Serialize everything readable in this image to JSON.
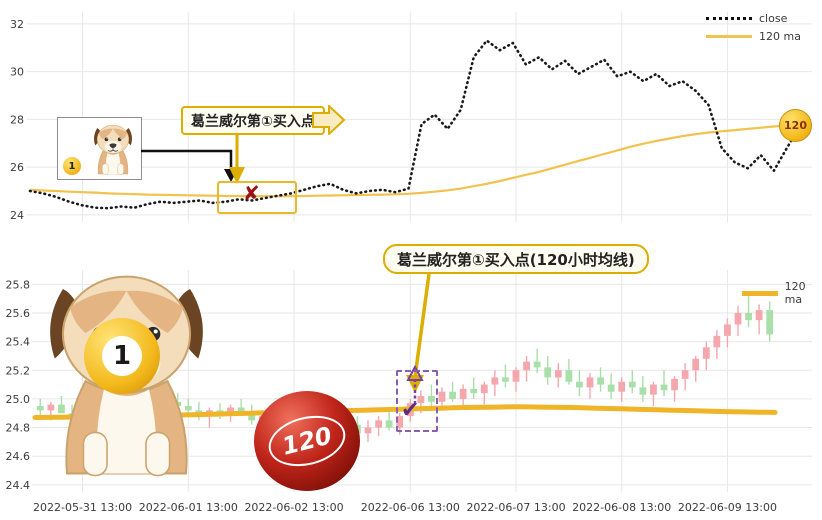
{
  "colors": {
    "up_candle": "#f4a7ad",
    "down_candle": "#a9dfa9",
    "ma_line": "#f0b429",
    "ma_line_top": "#f2c14e",
    "close_line": "#1a1a1a",
    "grid": "#e7e7e7",
    "tick_text": "#3c3c3c",
    "annotation_gold": "#dcae00",
    "marker_red": "#9c1313",
    "marker_purple": "#7b3fa0"
  },
  "annotations": {
    "top_label": "葛兰威尔第①买入点",
    "bottom_label": "葛兰威尔第①买入点(120小时均线)",
    "top_marker": "✘",
    "bottom_marker": "✔",
    "ma_badge": "120"
  },
  "balls": {
    "yellow_label": "1",
    "red_label": "120",
    "small_label": "1"
  },
  "chart_data": [
    {
      "type": "line",
      "title": "",
      "xlabel": "",
      "ylabel": "",
      "ylim": [
        23.7,
        32.5
      ],
      "y_ticks": [
        24,
        26,
        28,
        30,
        32
      ],
      "grid": true,
      "legend_position": "top-right",
      "series": [
        {
          "name": "close",
          "style": "dotted-black",
          "values": [
            25.0,
            24.9,
            24.75,
            24.55,
            24.4,
            24.3,
            24.28,
            24.35,
            24.3,
            24.45,
            24.55,
            24.5,
            24.55,
            24.6,
            24.5,
            24.55,
            24.65,
            24.6,
            24.7,
            24.8,
            24.9,
            25.05,
            25.2,
            25.3,
            25.05,
            24.9,
            25.0,
            25.05,
            24.95,
            25.1,
            27.8,
            28.2,
            27.6,
            28.4,
            30.6,
            31.3,
            30.9,
            31.2,
            30.3,
            30.6,
            30.1,
            30.45,
            29.9,
            30.2,
            30.5,
            29.8,
            30.0,
            29.6,
            29.9,
            29.4,
            29.6,
            29.2,
            28.6,
            26.8,
            26.2,
            25.95,
            26.5,
            25.85,
            26.8,
            27.7
          ]
        },
        {
          "name": "120 ma",
          "style": "solid-gold",
          "values": [
            25.05,
            25.02,
            25.0,
            24.97,
            24.95,
            24.93,
            24.9,
            24.88,
            24.87,
            24.85,
            24.84,
            24.83,
            24.82,
            24.81,
            24.8,
            24.79,
            24.79,
            24.78,
            24.78,
            24.78,
            24.78,
            24.79,
            24.8,
            24.81,
            24.82,
            24.83,
            24.84,
            24.85,
            24.86,
            24.88,
            24.92,
            24.97,
            25.03,
            25.1,
            25.2,
            25.3,
            25.42,
            25.55,
            25.68,
            25.8,
            25.95,
            26.1,
            26.25,
            26.4,
            26.55,
            26.7,
            26.85,
            26.98,
            27.1,
            27.2,
            27.3,
            27.38,
            27.45,
            27.5,
            27.55,
            27.6,
            27.65,
            27.7,
            27.75,
            27.8
          ]
        }
      ]
    },
    {
      "type": "candlestick",
      "title": "",
      "ylim": [
        24.35,
        25.9
      ],
      "y_ticks": [
        24.4,
        24.6,
        24.8,
        25.0,
        25.2,
        25.4,
        25.6,
        25.8
      ],
      "grid": true,
      "legend_position": "top-right",
      "x_labels": [
        "2022-05-31 13:00",
        "2022-06-01 13:00",
        "2022-06-02 13:00",
        "2022-06-06 13:00",
        "2022-06-07 13:00",
        "2022-06-08 13:00",
        "2022-06-09 13:00"
      ],
      "tick_indices": [
        4,
        14,
        24,
        35,
        45,
        55,
        65
      ],
      "ohlc": [
        [
          24.95,
          25.0,
          24.88,
          24.92
        ],
        [
          24.92,
          24.98,
          24.85,
          24.96
        ],
        [
          24.96,
          25.02,
          24.9,
          24.9
        ],
        [
          24.9,
          24.96,
          24.82,
          24.86
        ],
        [
          24.86,
          24.95,
          24.8,
          24.93
        ],
        [
          24.93,
          25.0,
          24.88,
          24.9
        ],
        [
          24.9,
          24.94,
          24.8,
          24.84
        ],
        [
          24.84,
          24.92,
          24.8,
          24.9
        ],
        [
          24.9,
          24.98,
          24.86,
          24.95
        ],
        [
          24.95,
          25.0,
          24.9,
          24.93
        ],
        [
          24.93,
          24.99,
          24.87,
          24.9
        ],
        [
          24.9,
          24.97,
          24.85,
          24.95
        ],
        [
          24.95,
          25.02,
          24.9,
          24.98
        ],
        [
          24.98,
          25.04,
          24.92,
          24.95
        ],
        [
          24.95,
          25.0,
          24.88,
          24.92
        ],
        [
          24.92,
          24.98,
          24.85,
          24.88
        ],
        [
          24.88,
          24.94,
          24.8,
          24.92
        ],
        [
          24.92,
          24.97,
          24.86,
          24.9
        ],
        [
          24.9,
          24.96,
          24.84,
          24.94
        ],
        [
          24.94,
          25.0,
          24.88,
          24.91
        ],
        [
          24.91,
          24.96,
          24.82,
          24.85
        ],
        [
          24.85,
          24.92,
          24.78,
          24.88
        ],
        [
          24.88,
          24.93,
          24.8,
          24.83
        ],
        [
          24.83,
          24.9,
          24.76,
          24.86
        ],
        [
          24.86,
          24.92,
          24.8,
          24.82
        ],
        [
          24.82,
          24.88,
          24.74,
          24.85
        ],
        [
          24.85,
          24.9,
          24.78,
          24.8
        ],
        [
          24.8,
          24.87,
          24.72,
          24.84
        ],
        [
          24.84,
          24.9,
          24.76,
          24.78
        ],
        [
          24.78,
          24.86,
          24.7,
          24.82
        ],
        [
          24.82,
          24.88,
          24.74,
          24.76
        ],
        [
          24.76,
          24.85,
          24.7,
          24.8
        ],
        [
          24.8,
          24.88,
          24.74,
          24.85
        ],
        [
          24.85,
          24.92,
          24.78,
          24.8
        ],
        [
          24.8,
          24.9,
          24.75,
          24.88
        ],
        [
          24.88,
          25.0,
          24.84,
          24.97
        ],
        [
          24.97,
          25.06,
          24.9,
          25.02
        ],
        [
          25.02,
          25.1,
          24.95,
          24.98
        ],
        [
          24.98,
          25.08,
          24.92,
          25.05
        ],
        [
          25.05,
          25.12,
          24.98,
          25.0
        ],
        [
          25.0,
          25.1,
          24.94,
          25.07
        ],
        [
          25.07,
          25.15,
          25.0,
          25.04
        ],
        [
          25.04,
          25.12,
          24.96,
          25.1
        ],
        [
          25.1,
          25.2,
          25.02,
          25.15
        ],
        [
          25.15,
          25.24,
          25.08,
          25.12
        ],
        [
          25.12,
          25.22,
          25.05,
          25.2
        ],
        [
          25.2,
          25.3,
          25.12,
          25.26
        ],
        [
          25.26,
          25.35,
          25.18,
          25.22
        ],
        [
          25.22,
          25.3,
          25.1,
          25.15
        ],
        [
          25.15,
          25.25,
          25.08,
          25.2
        ],
        [
          25.2,
          25.28,
          25.1,
          25.12
        ],
        [
          25.12,
          25.2,
          25.02,
          25.08
        ],
        [
          25.08,
          25.18,
          25.0,
          25.15
        ],
        [
          25.15,
          25.22,
          25.05,
          25.1
        ],
        [
          25.1,
          25.18,
          25.0,
          25.05
        ],
        [
          25.05,
          25.15,
          24.98,
          25.12
        ],
        [
          25.12,
          25.2,
          25.04,
          25.08
        ],
        [
          25.08,
          25.16,
          24.98,
          25.03
        ],
        [
          25.03,
          25.12,
          24.95,
          25.1
        ],
        [
          25.1,
          25.2,
          25.02,
          25.06
        ],
        [
          25.06,
          25.16,
          24.98,
          25.14
        ],
        [
          25.14,
          25.25,
          25.06,
          25.2
        ],
        [
          25.2,
          25.3,
          25.12,
          25.28
        ],
        [
          25.28,
          25.4,
          25.2,
          25.36
        ],
        [
          25.36,
          25.48,
          25.28,
          25.44
        ],
        [
          25.44,
          25.56,
          25.36,
          25.52
        ],
        [
          25.52,
          25.65,
          25.44,
          25.6
        ],
        [
          25.6,
          25.72,
          25.5,
          25.55
        ],
        [
          25.55,
          25.66,
          25.45,
          25.62
        ],
        [
          25.62,
          25.68,
          25.4,
          25.45
        ]
      ],
      "series": [
        {
          "name": "120 ma",
          "style": "solid-gold-thick",
          "values": [
            24.87,
            24.871,
            24.872,
            24.873,
            24.874,
            24.875,
            24.876,
            24.877,
            24.878,
            24.879,
            24.88,
            24.882,
            24.884,
            24.886,
            24.888,
            24.89,
            24.892,
            24.894,
            24.896,
            24.898,
            24.9,
            24.902,
            24.904,
            24.906,
            24.908,
            24.91,
            24.912,
            24.914,
            24.916,
            24.918,
            24.92,
            24.922,
            24.924,
            24.926,
            24.928,
            24.93,
            24.932,
            24.934,
            24.936,
            24.938,
            24.94,
            24.941,
            24.942,
            24.943,
            24.944,
            24.945,
            24.944,
            24.943,
            24.942,
            24.941,
            24.94,
            24.938,
            24.936,
            24.934,
            24.932,
            24.93,
            24.928,
            24.926,
            24.924,
            24.922,
            24.92,
            24.918,
            24.916,
            24.914,
            24.912,
            24.91,
            24.909,
            24.908,
            24.907,
            24.906
          ]
        }
      ]
    }
  ]
}
